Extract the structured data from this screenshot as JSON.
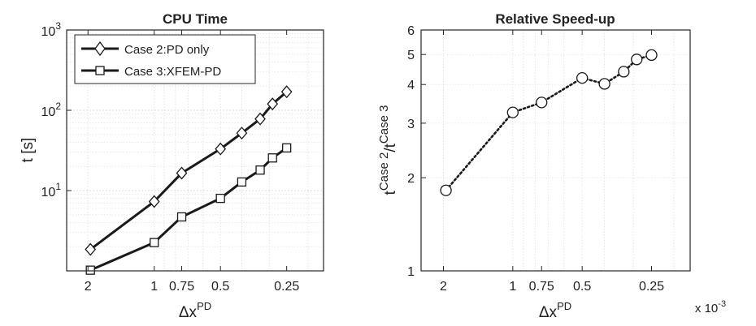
{
  "chart_data": [
    {
      "type": "line",
      "title": "CPU Time",
      "xlabel": "Δx",
      "xlabel_sup": "PD",
      "ylabel": "t [s]",
      "x_scale": "log",
      "x_reversed": true,
      "y_scale": "log",
      "xlim": [
        0.0025,
        0.00017
      ],
      "ylim": [
        1,
        1000
      ],
      "grid": true,
      "legend": "top-left",
      "x_ticks": [
        0.002,
        0.001,
        0.00075,
        0.0005,
        0.00025
      ],
      "x_tick_labels": [
        "2",
        "1",
        "0.75",
        "0.5",
        "0.25"
      ],
      "y_tick_labels": [
        {
          "base": "10",
          "exp": "1",
          "value": 10
        },
        {
          "base": "10",
          "exp": "2",
          "value": 100
        },
        {
          "base": "10",
          "exp": "3",
          "value": 1000
        }
      ],
      "series": [
        {
          "name": "Case 2:PD only",
          "marker": "diamond",
          "points": [
            [
              0.00195,
              1.85
            ],
            [
              0.001,
              7.3
            ],
            [
              0.00075,
              16.5
            ],
            [
              0.0005,
              33
            ],
            [
              0.0004,
              52
            ],
            [
              0.00033,
              78
            ],
            [
              0.00029,
              120
            ],
            [
              0.00025,
              170
            ]
          ]
        },
        {
          "name": "Case 3:XFEM-PD",
          "marker": "square",
          "points": [
            [
              0.00195,
              1.02
            ],
            [
              0.001,
              2.25
            ],
            [
              0.00075,
              4.7
            ],
            [
              0.0005,
              8
            ],
            [
              0.0004,
              12.8
            ],
            [
              0.00033,
              18
            ],
            [
              0.00029,
              25.5
            ],
            [
              0.00025,
              34
            ]
          ]
        }
      ]
    },
    {
      "type": "line",
      "title": "Relative Speed-up",
      "xlabel": "Δx",
      "xlabel_sup": "PD",
      "ylabel_base": "t",
      "ylabel_sup1": "Case 2",
      "ylabel_sep": "/t",
      "ylabel_sup2": "Case 3",
      "x_scale": "log",
      "x_reversed": true,
      "y_scale": "log",
      "xlim": [
        0.0025,
        0.00017
      ],
      "ylim": [
        1,
        6
      ],
      "grid": true,
      "x_multiplier": "x 10",
      "x_multiplier_exp": "-3",
      "x_ticks": [
        0.002,
        0.001,
        0.00075,
        0.0005,
        0.00025
      ],
      "x_tick_labels": [
        "2",
        "1",
        "0.75",
        "0.5",
        "0.25"
      ],
      "y_ticks": [
        1,
        2,
        3,
        4,
        5,
        6
      ],
      "y_tick_labels": [
        "1",
        "2",
        "3",
        "4",
        "5",
        "6"
      ],
      "series": [
        {
          "marker": "circle",
          "linestyle": "dotted",
          "points": [
            [
              0.00195,
              1.82
            ],
            [
              0.001,
              3.25
            ],
            [
              0.00075,
              3.5
            ],
            [
              0.0005,
              4.2
            ],
            [
              0.0004,
              4.02
            ],
            [
              0.00033,
              4.4
            ],
            [
              0.00029,
              4.82
            ],
            [
              0.00025,
              4.98
            ]
          ]
        }
      ]
    }
  ]
}
